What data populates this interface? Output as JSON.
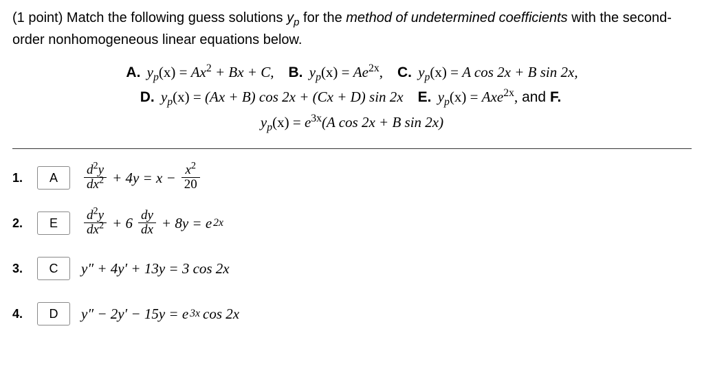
{
  "instruction": {
    "points_label": "(1 point)",
    "text_a": " Match the following guess solutions ",
    "yp": "y",
    "yp_sub": "p",
    "text_b": " for the ",
    "method_italic": "method of undetermined coefficients",
    "text_c": " with the second-order nonhomogeneous linear equations below."
  },
  "choices": {
    "A": {
      "label": "A.",
      "lhs": "y",
      "sub": "p",
      "arg": "(x) = ",
      "rhs_a": "Ax",
      "sq": "2",
      "rhs_b": " + Bx + C,"
    },
    "B": {
      "label": "B.",
      "lhs": "y",
      "sub": "p",
      "arg": "(x) = ",
      "rhs_a": "Ae",
      "exp": "2x",
      "comma": ","
    },
    "C": {
      "label": "C.",
      "lhs": "y",
      "sub": "p",
      "arg": "(x) = ",
      "rhs": "A cos 2x + B sin 2x,"
    },
    "D": {
      "label": "D.",
      "lhs": "y",
      "sub": "p",
      "arg": "(x) = ",
      "rhs": "(Ax + B) cos 2x + (Cx + D) sin 2x"
    },
    "E": {
      "label": "E.",
      "lhs": "y",
      "sub": "p",
      "arg": "(x) = ",
      "rhs_a": "Axe",
      "exp": "2x",
      "comma": ",",
      "tail": "  and  "
    },
    "F_label": "F.",
    "F": {
      "lhs": "y",
      "sub": "p",
      "arg": "(x) = ",
      "rhs_a": "e",
      "exp": "3x",
      "rhs_b": "(A cos 2x + B sin 2x)"
    }
  },
  "questions": [
    {
      "num": "1.",
      "answer": "A",
      "frac1": {
        "num_html": "d²y",
        "num_a": "d",
        "num_exp": "2",
        "num_b": "y",
        "den_a": "dx",
        "den_exp": "2"
      },
      "mid": " + 4y = x − ",
      "frac2": {
        "num_a": "x",
        "num_exp": "2",
        "den": "20"
      }
    },
    {
      "num": "2.",
      "answer": "E",
      "frac1": {
        "num_a": "d",
        "num_exp": "2",
        "num_b": "y",
        "den_a": "dx",
        "den_exp": "2"
      },
      "plus": " + 6",
      "frac2": {
        "num": "dy",
        "den": "dx"
      },
      "mid": " + 8y = e",
      "exp": "2x"
    },
    {
      "num": "3.",
      "answer": "C",
      "eq": "y″ + 4y′ + 13y = 3 cos 2x"
    },
    {
      "num": "4.",
      "answer": "D",
      "eq_a": "y″ − 2y′ − 15y = e",
      "exp": "3x",
      "eq_b": " cos 2x"
    }
  ]
}
